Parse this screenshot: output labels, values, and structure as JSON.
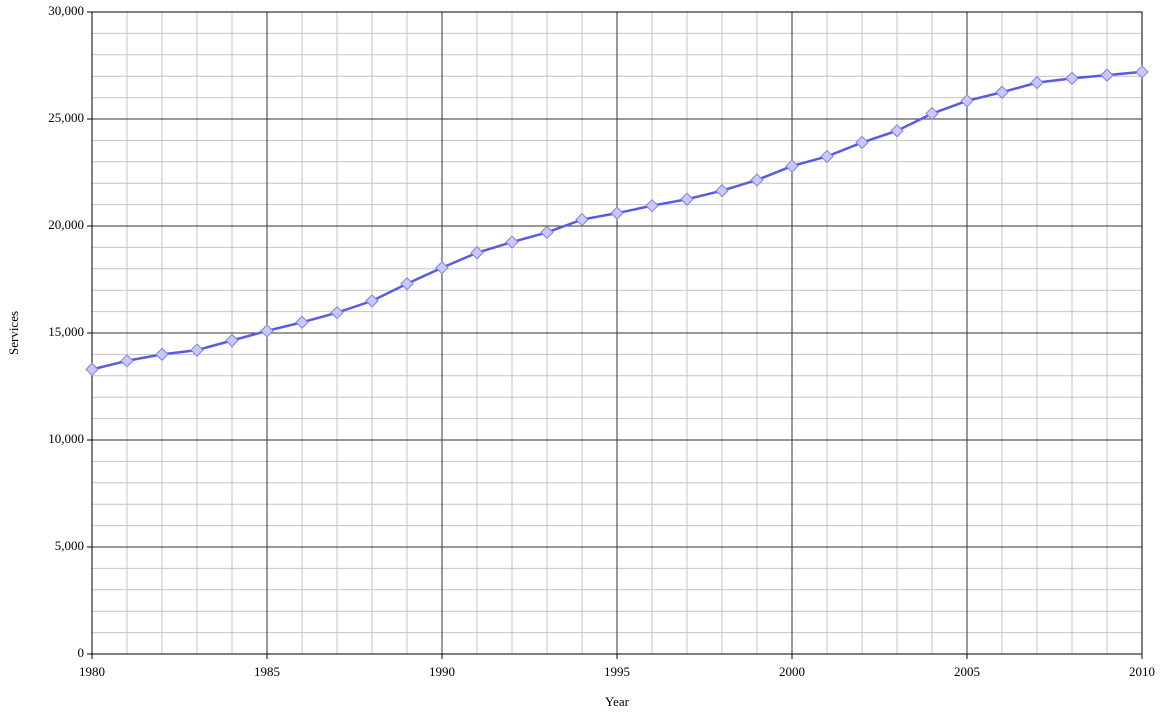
{
  "chart_data": {
    "type": "line",
    "x_label": "Year",
    "y_label": "Services",
    "x": [
      1980,
      1981,
      1982,
      1983,
      1984,
      1985,
      1986,
      1987,
      1988,
      1989,
      1990,
      1991,
      1992,
      1993,
      1994,
      1995,
      1996,
      1997,
      1998,
      1999,
      2000,
      2001,
      2002,
      2003,
      2004,
      2005,
      2006,
      2007,
      2008,
      2009,
      2010
    ],
    "series": [
      {
        "name": "Services",
        "color": "#5a5ae6",
        "marker_color": "#c8c8fa",
        "values": [
          13300,
          13700,
          14000,
          14200,
          14650,
          15100,
          15500,
          15950,
          16500,
          17300,
          18050,
          18750,
          19250,
          19700,
          20300,
          20600,
          20950,
          21250,
          21650,
          22150,
          22800,
          23250,
          23900,
          24450,
          25250,
          25850,
          26250,
          26700,
          26900,
          27050,
          27200
        ]
      }
    ],
    "xlim": [
      1980,
      2010
    ],
    "xticks": [
      1980,
      1985,
      1990,
      1995,
      2000,
      2005,
      2010
    ],
    "ylim": [
      0,
      30000
    ],
    "yticks": [
      0,
      {
        "value": 5000,
        "label": "5,000"
      },
      {
        "value": 10000,
        "label": "10,000"
      },
      {
        "value": 15000,
        "label": "15,000"
      },
      {
        "value": 20000,
        "label": "20,000"
      },
      {
        "value": 25000,
        "label": "25,000"
      },
      {
        "value": 30000,
        "label": "30,000"
      }
    ],
    "grid": true
  }
}
